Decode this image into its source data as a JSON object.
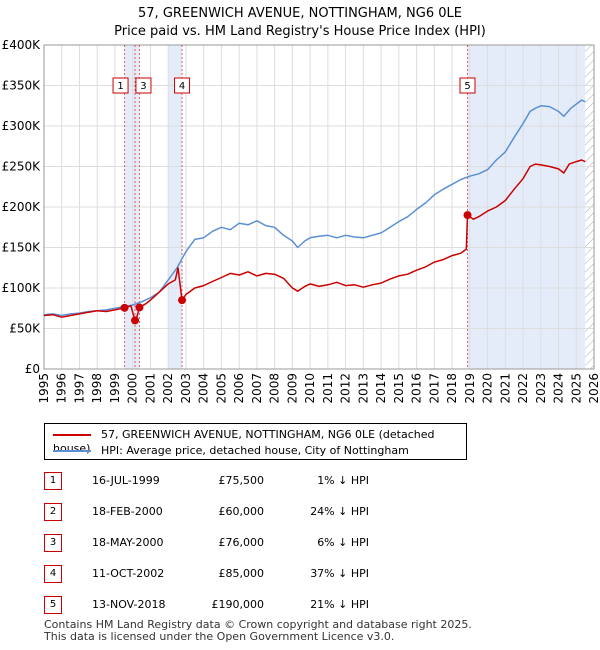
{
  "chart_data": {
    "type": "line",
    "title": "57, GREENWICH AVENUE, NOTTINGHAM, NG6 0LE",
    "subtitle": "Price paid vs. HM Land Registry's House Price Index (HPI)",
    "x_range": [
      1995,
      2026
    ],
    "ylim": [
      0,
      400000
    ],
    "x_ticks": [
      "1995",
      "1996",
      "1997",
      "1998",
      "1999",
      "2000",
      "2001",
      "2002",
      "2003",
      "2004",
      "2005",
      "2006",
      "2007",
      "2008",
      "2009",
      "2010",
      "2011",
      "2012",
      "2013",
      "2014",
      "2015",
      "2016",
      "2017",
      "2018",
      "2019",
      "2020",
      "2021",
      "2022",
      "2023",
      "2024",
      "2025",
      "2026"
    ],
    "y_ticks": [
      {
        "value": 0,
        "label": "£0"
      },
      {
        "value": 50000,
        "label": "£50K"
      },
      {
        "value": 100000,
        "label": "£100K"
      },
      {
        "value": 150000,
        "label": "£150K"
      },
      {
        "value": 200000,
        "label": "£200K"
      },
      {
        "value": 250000,
        "label": "£250K"
      },
      {
        "value": 300000,
        "label": "£300K"
      },
      {
        "value": 350000,
        "label": "£350K"
      },
      {
        "value": 400000,
        "label": "£400K"
      }
    ],
    "series": [
      {
        "name": "57, GREENWICH AVENUE, NOTTINGHAM, NG6 0LE (detached house)",
        "color": "#cc0000",
        "points": [
          [
            1995.0,
            66000
          ],
          [
            1995.5,
            67000
          ],
          [
            1996.0,
            64000
          ],
          [
            1996.5,
            66000
          ],
          [
            1997.0,
            68000
          ],
          [
            1997.5,
            70000
          ],
          [
            1998.0,
            72000
          ],
          [
            1998.5,
            71000
          ],
          [
            1999.0,
            73000
          ],
          [
            1999.54,
            75500
          ],
          [
            1999.9,
            78000
          ],
          [
            2000.13,
            60000
          ],
          [
            2000.2,
            62000
          ],
          [
            2000.38,
            76000
          ],
          [
            2000.7,
            80000
          ],
          [
            2001.0,
            85000
          ],
          [
            2001.5,
            95000
          ],
          [
            2002.0,
            105000
          ],
          [
            2002.4,
            110000
          ],
          [
            2002.55,
            125000
          ],
          [
            2002.78,
            85000
          ],
          [
            2003.0,
            92000
          ],
          [
            2003.5,
            100000
          ],
          [
            2004.0,
            103000
          ],
          [
            2004.5,
            108000
          ],
          [
            2005.0,
            113000
          ],
          [
            2005.5,
            118000
          ],
          [
            2006.0,
            116000
          ],
          [
            2006.5,
            120000
          ],
          [
            2007.0,
            115000
          ],
          [
            2007.5,
            118000
          ],
          [
            2008.0,
            117000
          ],
          [
            2008.5,
            112000
          ],
          [
            2009.0,
            100000
          ],
          [
            2009.3,
            96000
          ],
          [
            2009.7,
            102000
          ],
          [
            2010.0,
            105000
          ],
          [
            2010.5,
            102000
          ],
          [
            2011.0,
            104000
          ],
          [
            2011.5,
            107000
          ],
          [
            2012.0,
            103000
          ],
          [
            2012.5,
            104000
          ],
          [
            2013.0,
            101000
          ],
          [
            2013.5,
            104000
          ],
          [
            2014.0,
            106000
          ],
          [
            2014.5,
            111000
          ],
          [
            2015.0,
            115000
          ],
          [
            2015.5,
            117000
          ],
          [
            2016.0,
            122000
          ],
          [
            2016.5,
            126000
          ],
          [
            2017.0,
            132000
          ],
          [
            2017.5,
            135000
          ],
          [
            2018.0,
            140000
          ],
          [
            2018.5,
            143000
          ],
          [
            2018.8,
            148000
          ],
          [
            2018.87,
            190000
          ],
          [
            2019.2,
            185000
          ],
          [
            2019.5,
            188000
          ],
          [
            2020.0,
            195000
          ],
          [
            2020.5,
            200000
          ],
          [
            2021.0,
            208000
          ],
          [
            2021.5,
            222000
          ],
          [
            2022.0,
            235000
          ],
          [
            2022.4,
            250000
          ],
          [
            2022.7,
            253000
          ],
          [
            2023.0,
            252000
          ],
          [
            2023.5,
            250000
          ],
          [
            2024.0,
            247000
          ],
          [
            2024.3,
            242000
          ],
          [
            2024.6,
            253000
          ],
          [
            2025.0,
            256000
          ],
          [
            2025.3,
            258000
          ],
          [
            2025.5,
            256000
          ]
        ]
      },
      {
        "name": "HPI: Average price, detached house, City of Nottingham",
        "color": "#5b8fd4",
        "points": [
          [
            1995.0,
            67000
          ],
          [
            1995.5,
            68000
          ],
          [
            1996.0,
            66000
          ],
          [
            1996.5,
            68000
          ],
          [
            1997.0,
            69000
          ],
          [
            1997.5,
            71000
          ],
          [
            1998.0,
            72000
          ],
          [
            1998.5,
            73000
          ],
          [
            1999.0,
            75000
          ],
          [
            1999.5,
            77000
          ],
          [
            2000.0,
            79000
          ],
          [
            2000.5,
            83000
          ],
          [
            2001.0,
            88000
          ],
          [
            2001.5,
            95000
          ],
          [
            2002.0,
            110000
          ],
          [
            2002.5,
            125000
          ],
          [
            2003.0,
            145000
          ],
          [
            2003.5,
            160000
          ],
          [
            2004.0,
            162000
          ],
          [
            2004.5,
            170000
          ],
          [
            2005.0,
            175000
          ],
          [
            2005.5,
            172000
          ],
          [
            2006.0,
            180000
          ],
          [
            2006.5,
            178000
          ],
          [
            2007.0,
            183000
          ],
          [
            2007.5,
            177000
          ],
          [
            2008.0,
            175000
          ],
          [
            2008.5,
            165000
          ],
          [
            2009.0,
            158000
          ],
          [
            2009.3,
            150000
          ],
          [
            2009.7,
            158000
          ],
          [
            2010.0,
            162000
          ],
          [
            2010.5,
            164000
          ],
          [
            2011.0,
            165000
          ],
          [
            2011.5,
            162000
          ],
          [
            2012.0,
            165000
          ],
          [
            2012.5,
            163000
          ],
          [
            2013.0,
            162000
          ],
          [
            2013.5,
            165000
          ],
          [
            2014.0,
            168000
          ],
          [
            2014.5,
            175000
          ],
          [
            2015.0,
            182000
          ],
          [
            2015.5,
            188000
          ],
          [
            2016.0,
            197000
          ],
          [
            2016.5,
            205000
          ],
          [
            2017.0,
            215000
          ],
          [
            2017.5,
            222000
          ],
          [
            2018.0,
            228000
          ],
          [
            2018.5,
            234000
          ],
          [
            2019.0,
            238000
          ],
          [
            2019.5,
            241000
          ],
          [
            2020.0,
            246000
          ],
          [
            2020.5,
            258000
          ],
          [
            2021.0,
            268000
          ],
          [
            2021.5,
            286000
          ],
          [
            2022.0,
            303000
          ],
          [
            2022.4,
            318000
          ],
          [
            2022.7,
            322000
          ],
          [
            2023.0,
            325000
          ],
          [
            2023.5,
            324000
          ],
          [
            2024.0,
            318000
          ],
          [
            2024.3,
            312000
          ],
          [
            2024.7,
            322000
          ],
          [
            2025.0,
            327000
          ],
          [
            2025.3,
            332000
          ],
          [
            2025.5,
            330000
          ]
        ]
      }
    ],
    "sales": [
      {
        "id": "1",
        "x": 1999.54,
        "value": 75500
      },
      {
        "id": "2",
        "x": 2000.13,
        "value": 60000
      },
      {
        "id": "3",
        "x": 2000.38,
        "value": 76000
      },
      {
        "id": "4",
        "x": 2002.78,
        "value": 85000
      },
      {
        "id": "5",
        "x": 2018.87,
        "value": 190000
      }
    ],
    "shaded_spans": [
      [
        1999.54,
        2000.38
      ],
      [
        2002.0,
        2002.78
      ],
      [
        2018.87,
        2025.5
      ]
    ],
    "hatched_from": 2025.5
  },
  "legend": {
    "red_label": "57, GREENWICH AVENUE, NOTTINGHAM, NG6 0LE (detached house)",
    "blue_label": "HPI: Average price, detached house, City of Nottingham"
  },
  "transactions": [
    {
      "num": "1",
      "date": "16-JUL-1999",
      "price": "£75,500",
      "hpi": "1% ↓ HPI"
    },
    {
      "num": "2",
      "date": "18-FEB-2000",
      "price": "£60,000",
      "hpi": "24% ↓ HPI"
    },
    {
      "num": "3",
      "date": "18-MAY-2000",
      "price": "£76,000",
      "hpi": "6% ↓ HPI"
    },
    {
      "num": "4",
      "date": "11-OCT-2002",
      "price": "£85,000",
      "hpi": "37% ↓ HPI"
    },
    {
      "num": "5",
      "date": "13-NOV-2018",
      "price": "£190,000",
      "hpi": "21% ↓ HPI"
    }
  ],
  "footer": {
    "line1": "Contains HM Land Registry data © Crown copyright and database right 2025.",
    "line2": "This data is licensed under the Open Government Licence v3.0."
  }
}
